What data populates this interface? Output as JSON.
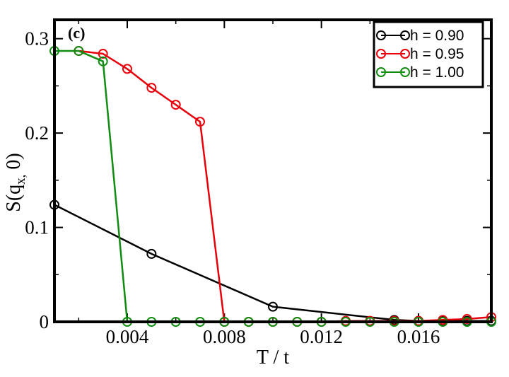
{
  "chart_data": {
    "type": "line",
    "panel_label": "(c)",
    "xlabel": "T / t",
    "ylabel_main": "S(q",
    "ylabel_sub": "x,",
    "ylabel_tail": " 0)",
    "xlim": [
      0.001,
      0.019
    ],
    "ylim": [
      0,
      0.32
    ],
    "xticks": [
      0.004,
      0.008,
      0.012,
      0.016
    ],
    "xtick_labels": [
      "0.004",
      "0.008",
      "0.012",
      "0.016"
    ],
    "yticks": [
      0,
      0.1,
      0.2,
      0.3
    ],
    "ytick_labels": [
      "0",
      "0.1",
      "0.2",
      "0.3"
    ],
    "legend_position": "top-right",
    "grid": false,
    "series": [
      {
        "name": "h = 0.90",
        "color": "#000000",
        "x": [
          0.001,
          0.005,
          0.01,
          0.015,
          0.016,
          0.017,
          0.018,
          0.019
        ],
        "y": [
          0.124,
          0.072,
          0.016,
          0.002,
          0.001,
          0.001,
          0.001,
          0.001
        ]
      },
      {
        "name": "h = 0.95",
        "color": "#e8000b",
        "x": [
          0.002,
          0.003,
          0.004,
          0.005,
          0.006,
          0.007,
          0.008,
          0.009,
          0.01,
          0.011,
          0.012,
          0.013,
          0.014,
          0.015,
          0.016,
          0.017,
          0.018,
          0.019
        ],
        "y": [
          0.287,
          0.284,
          0.268,
          0.248,
          0.23,
          0.212,
          0.0,
          0.0,
          0.0,
          0.0,
          0.0,
          0.001,
          0.001,
          0.001,
          0.001,
          0.002,
          0.003,
          0.005
        ]
      },
      {
        "name": "h = 1.00",
        "color": "#118c11",
        "x": [
          0.001,
          0.002,
          0.003,
          0.004,
          0.005,
          0.006,
          0.007,
          0.008,
          0.009,
          0.01,
          0.011,
          0.012,
          0.013,
          0.014,
          0.015,
          0.016,
          0.017,
          0.018,
          0.019
        ],
        "y": [
          0.287,
          0.287,
          0.276,
          0.0,
          0.0,
          0.0,
          0.0,
          0.0,
          0.0,
          0.0,
          0.0,
          0.0,
          0.0,
          0.0,
          0.0,
          0.0,
          0.0,
          0.0,
          0.0
        ]
      }
    ]
  }
}
